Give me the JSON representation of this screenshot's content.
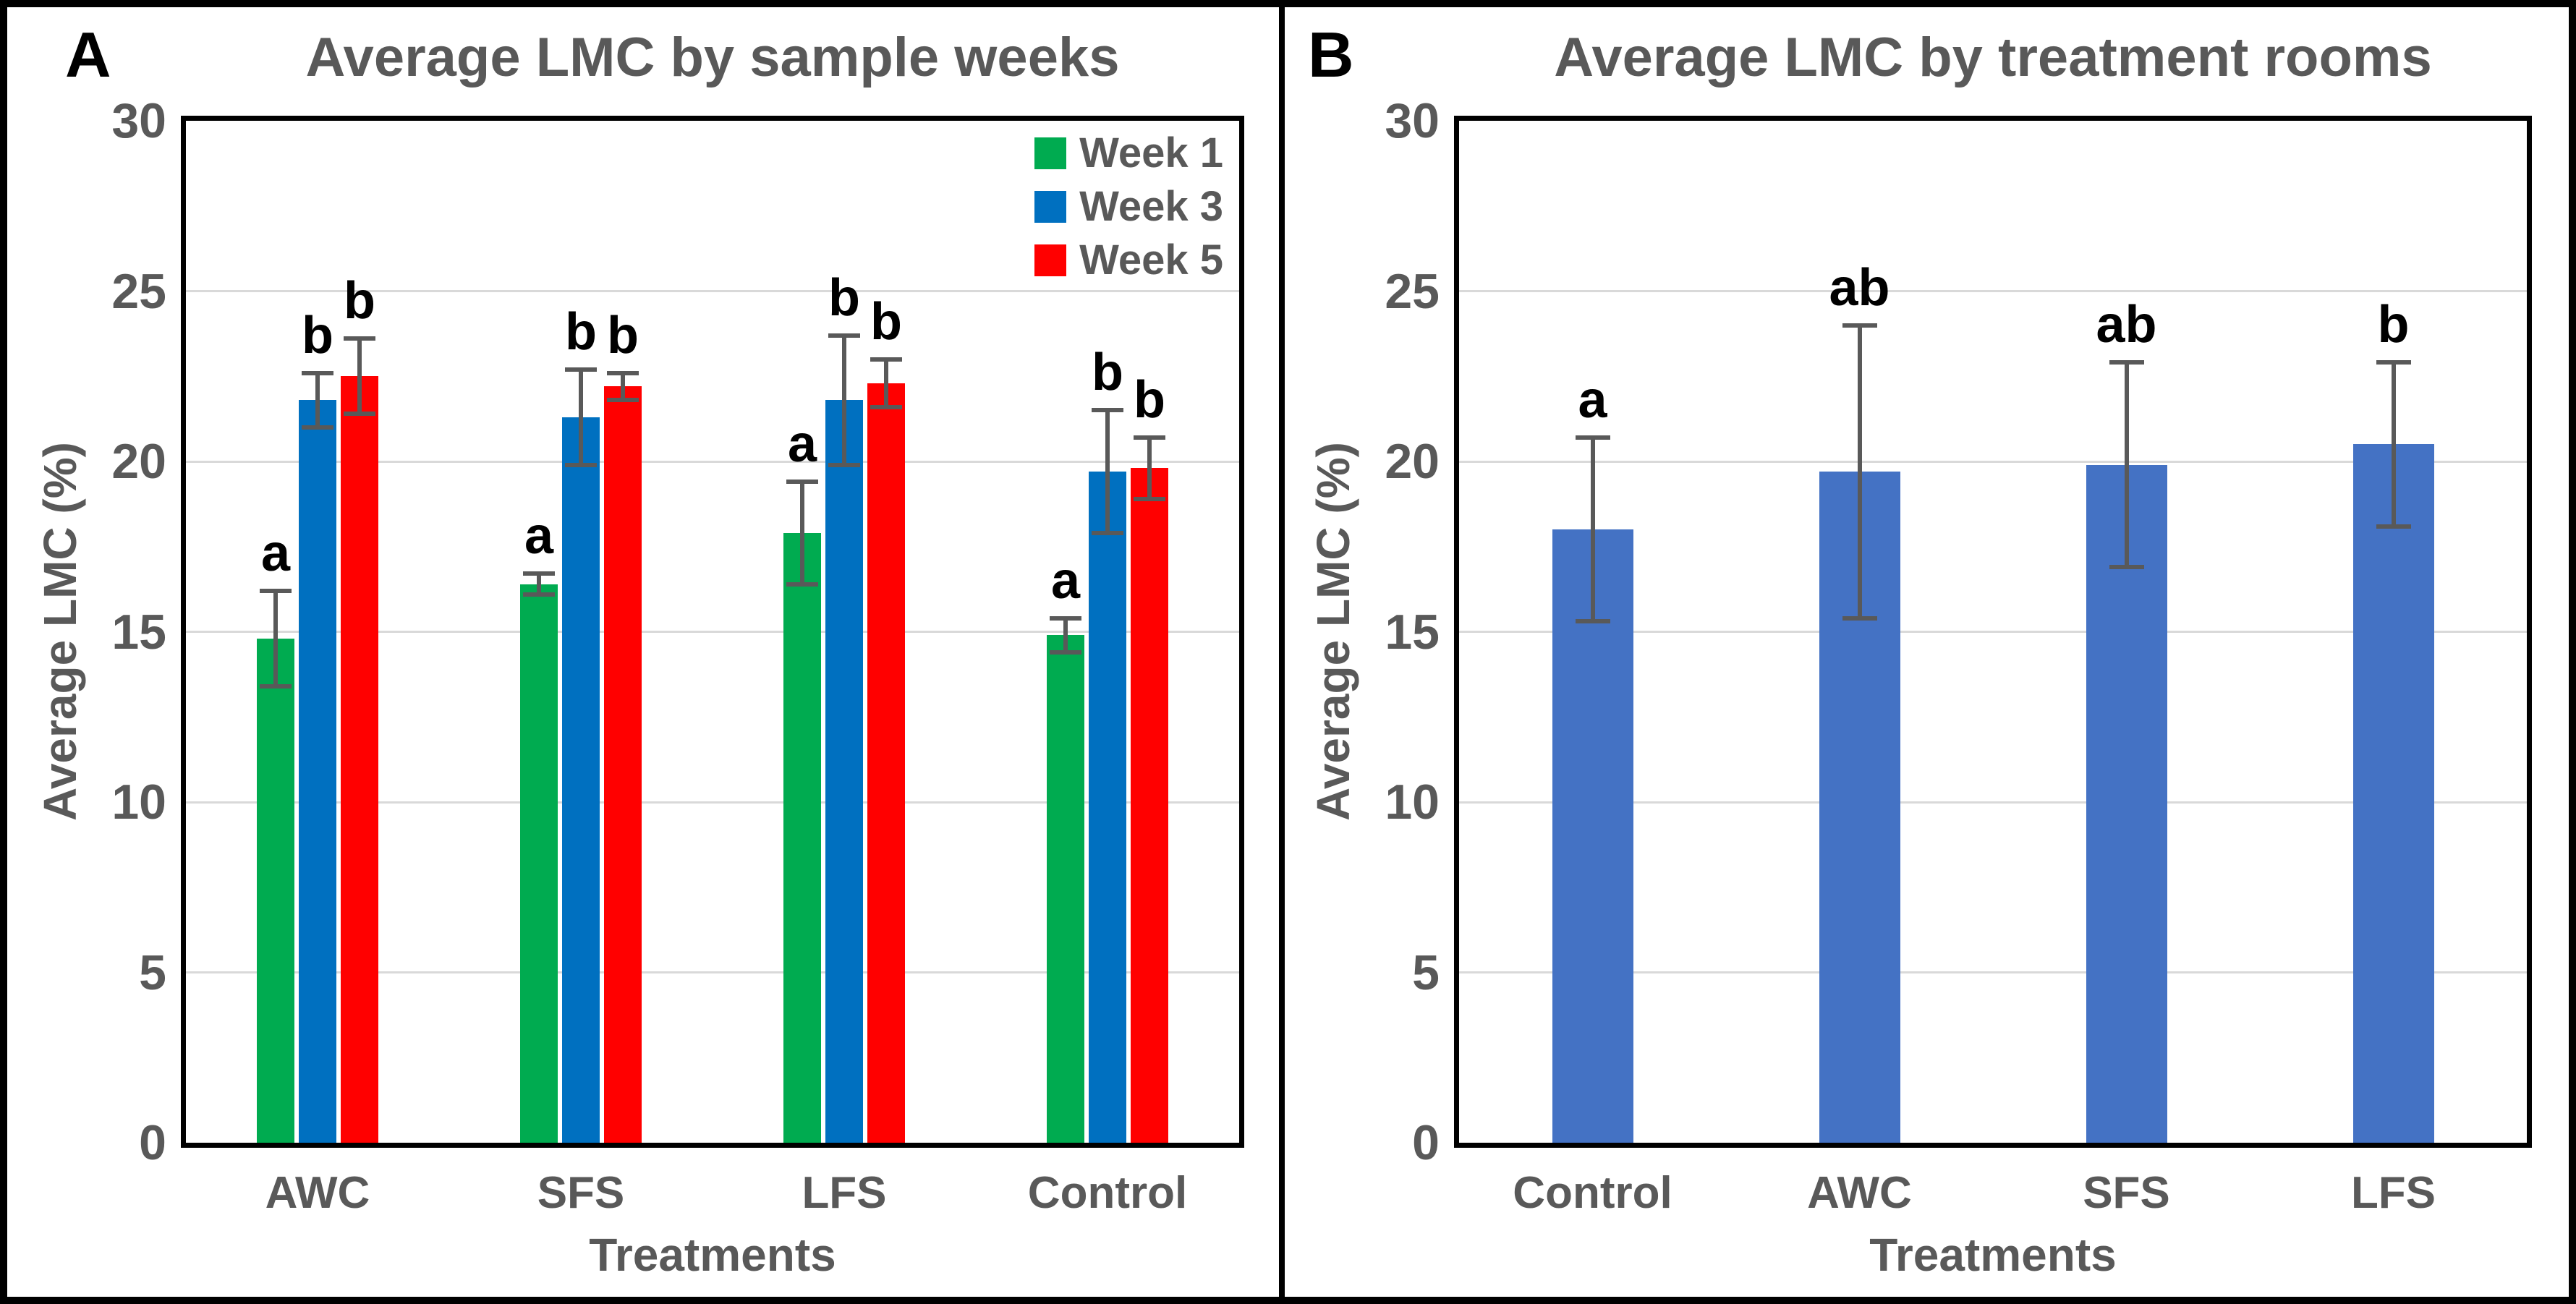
{
  "figure_colors": {
    "week1_green": "#00AB50",
    "week3_blue": "#0070C0",
    "week5_red": "#FF0000",
    "panel_b_bar_blue": "#4472C4",
    "error_bar": "#595959",
    "axis_text": "#595959",
    "gridline": "#D9D9D9",
    "plot_border": "#000000",
    "significance_letter": "#000000"
  },
  "chart_data": [
    {
      "type": "bar",
      "panel_label": "A",
      "title": "Average LMC by sample weeks",
      "xlabel": "Treatments",
      "ylabel": "Average LMC (%)",
      "ylim": [
        0,
        30
      ],
      "yticks": [
        0,
        5,
        10,
        15,
        20,
        25,
        30
      ],
      "grid": true,
      "legend_position": "top-right-inside",
      "categories": [
        "AWC",
        "SFS",
        "LFS",
        "Control"
      ],
      "series": [
        {
          "name": "Week 1",
          "color": "#00AB50",
          "values": [
            14.8,
            16.4,
            17.9,
            14.9
          ],
          "errors": [
            1.4,
            0.3,
            1.5,
            0.5
          ],
          "letters": [
            "a",
            "a",
            "a",
            "a"
          ]
        },
        {
          "name": "Week 3",
          "color": "#0070C0",
          "values": [
            21.8,
            21.3,
            21.8,
            19.7
          ],
          "errors": [
            0.8,
            1.4,
            1.9,
            1.8
          ],
          "letters": [
            "b",
            "b",
            "b",
            "b"
          ]
        },
        {
          "name": "Week 5",
          "color": "#FF0000",
          "values": [
            22.5,
            22.2,
            22.3,
            19.8
          ],
          "errors": [
            1.1,
            0.4,
            0.7,
            0.9
          ],
          "letters": [
            "b",
            "b",
            "b",
            "b"
          ]
        }
      ]
    },
    {
      "type": "bar",
      "panel_label": "B",
      "title": "Average LMC by treatment rooms",
      "xlabel": "Treatments",
      "ylabel": "Average LMC (%)",
      "ylim": [
        0,
        30
      ],
      "yticks": [
        0,
        5,
        10,
        15,
        20,
        25,
        30
      ],
      "grid": true,
      "legend_position": "none",
      "categories": [
        "Control",
        "AWC",
        "SFS",
        "LFS"
      ],
      "series": [
        {
          "name": "Average LMC",
          "color": "#4472C4",
          "values": [
            18.0,
            19.7,
            19.9,
            20.5
          ],
          "errors": [
            2.7,
            4.3,
            3.0,
            2.4
          ],
          "letters": [
            "a",
            "ab",
            "ab",
            "b"
          ]
        }
      ]
    }
  ]
}
